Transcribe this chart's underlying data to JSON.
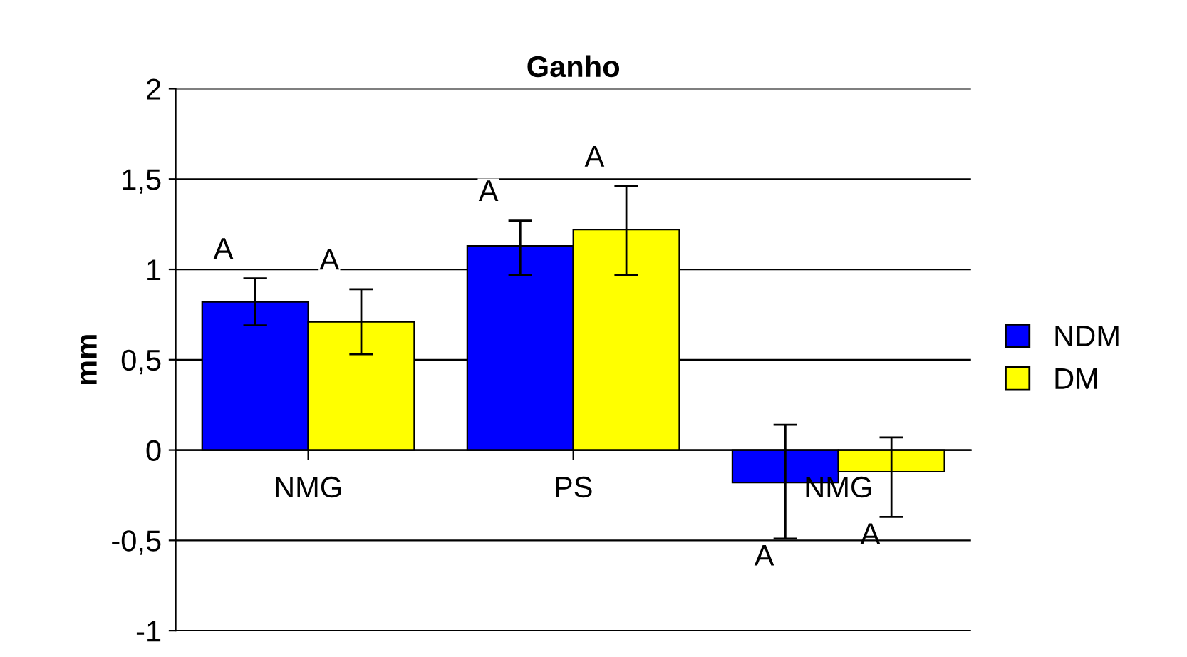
{
  "chart_data": {
    "type": "bar",
    "title": "Ganho",
    "ylabel": "mm",
    "categories": [
      "NMG",
      "PS",
      "NMG"
    ],
    "series": [
      {
        "name": "NDM",
        "color": "#0000ff",
        "values": [
          0.82,
          1.13,
          -0.18
        ],
        "errors": [
          [
            0.69,
            0.95
          ],
          [
            0.97,
            1.27
          ],
          [
            -0.49,
            0.14
          ]
        ]
      },
      {
        "name": "DM",
        "color": "#ffff00",
        "values": [
          0.71,
          1.22,
          -0.12
        ],
        "errors": [
          [
            0.53,
            0.89
          ],
          [
            0.97,
            1.46
          ],
          [
            -0.37,
            0.07
          ]
        ]
      }
    ],
    "annotations": [
      "A",
      "A",
      "A",
      "A",
      "A",
      "A"
    ],
    "ylim": [
      -1,
      2
    ],
    "yticks": [
      {
        "value": -1,
        "label": "-1"
      },
      {
        "value": -0.5,
        "label": "-0,5"
      },
      {
        "value": 0,
        "label": "0"
      },
      {
        "value": 0.5,
        "label": "0,5"
      },
      {
        "value": 1,
        "label": "1"
      },
      {
        "value": 1.5,
        "label": "1,5"
      },
      {
        "value": 2,
        "label": "2"
      }
    ],
    "grid": "y",
    "legend": "right"
  }
}
